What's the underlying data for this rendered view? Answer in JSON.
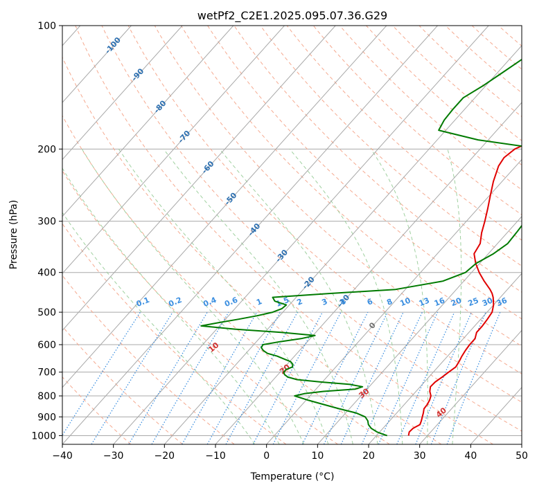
{
  "chart_data": {
    "type": "line",
    "subtype": "skew-t log-p diagram",
    "title": "wetPf2_C2E1.2025.095.07.36.G29",
    "xlabel": "Temperature (°C)",
    "ylabel": "Pressure (hPa)",
    "xlim": [
      -40,
      50
    ],
    "ylim": [
      1050,
      100
    ],
    "y_scale": "log",
    "grid": true,
    "x_ticks": [
      -40,
      -30,
      -20,
      -10,
      0,
      10,
      20,
      30,
      40,
      50
    ],
    "x_tick_labels": [
      "−40",
      "−30",
      "−20",
      "−10",
      "0",
      "10",
      "20",
      "30",
      "40",
      "50"
    ],
    "y_ticks": [
      100,
      200,
      300,
      400,
      500,
      600,
      700,
      800,
      900,
      1000
    ],
    "y_tick_labels": [
      "100",
      "200",
      "300",
      "400",
      "500",
      "600",
      "700",
      "800",
      "900",
      "1000"
    ],
    "colors": {
      "temperature": "#e00000",
      "dewpoint": "#007a00",
      "isotherm": "#a8a8a8",
      "dry_adiabat": "#f5a98f",
      "moist_adiabat": "#9fd09f",
      "mixing_ratio": "#3c8fe0",
      "isotherm_label": "#2c6fb0",
      "dry_adiabat_label": "#d03030",
      "mixing_label": "#3c8fe0"
    },
    "series": [
      {
        "key": "temperature",
        "p": [
          1000,
          980,
          960,
          940,
          920,
          900,
          880,
          860,
          840,
          820,
          800,
          780,
          760,
          740,
          720,
          700,
          680,
          660,
          640,
          620,
          600,
          580,
          560,
          540,
          520,
          500,
          480,
          460,
          450,
          440,
          420,
          400,
          380,
          360,
          340,
          320,
          300,
          280,
          260,
          240,
          220,
          210,
          200,
          190,
          180,
          170,
          160,
          150,
          140,
          130,
          120,
          110,
          100
        ],
        "t": [
          26.3,
          25.8,
          25.9,
          26.6,
          26.2,
          25.7,
          25.2,
          24.6,
          24.5,
          24.2,
          23.7,
          22.7,
          22.0,
          22.1,
          22.6,
          23.0,
          23.5,
          23.2,
          22.8,
          22.5,
          22.3,
          22.3,
          21.5,
          21.5,
          21.3,
          21.0,
          20.0,
          18.6,
          17.7,
          16.6,
          14.0,
          11.5,
          9.2,
          7.2,
          6.6,
          5.0,
          3.6,
          2.0,
          0.2,
          -1.7,
          -3.4,
          -3.8,
          -3.2,
          -0.8,
          1.4,
          2.7,
          4.1,
          4.1,
          4.8,
          5.2,
          5.0,
          5.3,
          6.4
        ]
      },
      {
        "key": "dewpoint",
        "p": [
          1000,
          990,
          980,
          960,
          940,
          920,
          900,
          880,
          860,
          840,
          820,
          800,
          790,
          780,
          770,
          760,
          750,
          740,
          730,
          720,
          710,
          700,
          690,
          680,
          670,
          660,
          650,
          640,
          630,
          620,
          610,
          600,
          590,
          580,
          570,
          560,
          550,
          540,
          530,
          520,
          510,
          500,
          490,
          480,
          470,
          460,
          450,
          440,
          420,
          400,
          380,
          360,
          340,
          320,
          300,
          280,
          260,
          240,
          220,
          210,
          200,
          190,
          180,
          170,
          160,
          150,
          140,
          130,
          120,
          110,
          100
        ],
        "t": [
          22.1,
          20.8,
          19.5,
          17.7,
          16.5,
          15.7,
          14.5,
          12.0,
          8.0,
          4.3,
          0.5,
          -3.0,
          -1.5,
          1.9,
          7.7,
          8.7,
          5.8,
          -0.2,
          -5.4,
          -7.6,
          -8.7,
          -9.3,
          -9.3,
          -8.5,
          -8.9,
          -9.8,
          -11.6,
          -13.4,
          -15.8,
          -17.1,
          -18.0,
          -18.2,
          -15.4,
          -11.8,
          -9.6,
          -16.8,
          -26.4,
          -33.6,
          -30.7,
          -27.4,
          -24.4,
          -22.0,
          -20.8,
          -20.6,
          -23.5,
          -24.6,
          -14.0,
          -1.9,
          5.9,
          8.8,
          9.3,
          11.0,
          12.0,
          11.8,
          11.5,
          9.7,
          8.0,
          6.5,
          5.0,
          5.8,
          2.1,
          -12.0,
          -21.4,
          -22.1,
          -22.3,
          -22.3,
          -20.5,
          -19.0,
          -17.4,
          -15.3,
          -13.4
        ]
      }
    ],
    "reference_lines": {
      "isotherms_C": [
        -120,
        -110,
        -100,
        -90,
        -80,
        -70,
        -60,
        -50,
        -40,
        -30,
        -20,
        -10,
        0,
        10,
        20,
        30,
        40,
        50
      ],
      "dry_adiabats_C_at_1000hPa": [
        -30,
        -20,
        -10,
        0,
        10,
        20,
        30,
        40,
        50,
        60,
        70,
        80,
        90,
        100,
        110,
        120,
        130,
        140,
        150,
        160,
        170,
        180,
        190,
        200,
        210
      ],
      "moist_adiabats_C_at_1000hPa": [
        -5,
        0,
        5,
        10,
        15,
        20,
        25,
        30,
        35
      ],
      "mixing_ratios_g_per_kg": [
        0.1,
        0.2,
        0.4,
        0.6,
        1,
        1.5,
        2,
        3,
        4,
        6,
        8,
        10,
        13,
        16,
        20,
        25,
        30,
        36
      ]
    },
    "annotations": {
      "isotherm_labels": [
        {
          "text": "-100",
          "t": -100,
          "p": 112
        },
        {
          "text": "-90",
          "t": -90,
          "p": 132
        },
        {
          "text": "-80",
          "t": -80,
          "p": 158
        },
        {
          "text": "-70",
          "t": -70,
          "p": 187
        },
        {
          "text": "-60",
          "t": -60,
          "p": 222
        },
        {
          "text": "-50",
          "t": -50,
          "p": 265
        },
        {
          "text": "-40",
          "t": -40,
          "p": 315
        },
        {
          "text": "-30",
          "t": -30,
          "p": 365
        },
        {
          "text": "-20",
          "t": -20,
          "p": 425
        },
        {
          "text": "-10",
          "t": -10,
          "p": 470
        },
        {
          "text": "0",
          "t": 0,
          "p": 540
        }
      ],
      "dry_adiabat_labels": [
        {
          "text": "10",
          "theta": 10,
          "p": 610
        },
        {
          "text": "20",
          "theta": 20,
          "p": 690
        },
        {
          "text": "30",
          "theta": 30,
          "p": 790
        },
        {
          "text": "40",
          "theta": 40,
          "p": 880
        }
      ],
      "mixing_ratio_labels": [
        {
          "text": "0.1",
          "w": 0.1,
          "p": 488
        },
        {
          "text": "0.2",
          "w": 0.2,
          "p": 488
        },
        {
          "text": "0.4",
          "w": 0.4,
          "p": 488
        },
        {
          "text": "0.6",
          "w": 0.6,
          "p": 488
        },
        {
          "text": "1",
          "w": 1,
          "p": 488
        },
        {
          "text": "1.5",
          "w": 1.5,
          "p": 488
        },
        {
          "text": "2",
          "w": 2,
          "p": 488
        },
        {
          "text": "3",
          "w": 3,
          "p": 488
        },
        {
          "text": "4",
          "w": 4,
          "p": 488
        },
        {
          "text": "6",
          "w": 6,
          "p": 488
        },
        {
          "text": "8",
          "w": 8,
          "p": 488
        },
        {
          "text": "10",
          "w": 10,
          "p": 488
        },
        {
          "text": "13",
          "w": 13,
          "p": 488
        },
        {
          "text": "16",
          "w": 16,
          "p": 488
        },
        {
          "text": "20",
          "w": 20,
          "p": 488
        },
        {
          "text": "25",
          "w": 25,
          "p": 488
        },
        {
          "text": "30",
          "w": 30,
          "p": 488
        },
        {
          "text": "36",
          "w": 36,
          "p": 488
        }
      ]
    }
  }
}
